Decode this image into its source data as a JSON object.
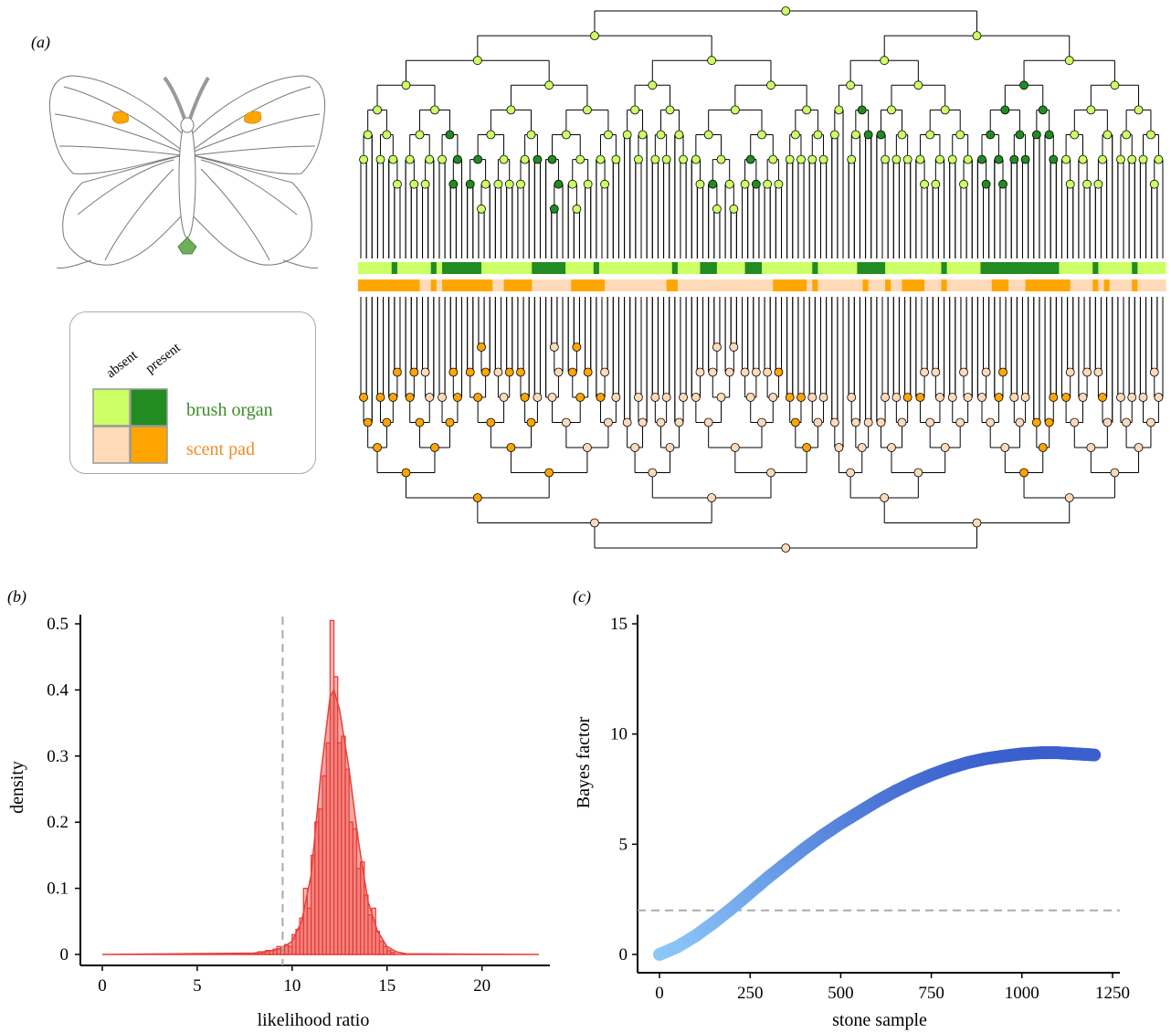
{
  "panel_a": {
    "label": "(a)",
    "legend": {
      "absent_label": "absent",
      "present_label": "present",
      "rows": [
        {
          "label": "brush organ",
          "absent_color": "#ccff66",
          "present_color": "#228b22",
          "label_color": "#3c8c28"
        },
        {
          "label": "scent pad",
          "absent_color": "#ffdab9",
          "present_color": "#ffa500",
          "label_color": "#f08c28"
        }
      ]
    },
    "tree_colors": {
      "brush_absent": "#ccff66",
      "brush_present": "#228b22",
      "scent_absent": "#ffdab9",
      "scent_present": "#ffa500"
    }
  },
  "panel_b": {
    "label": "(b)",
    "chart_data": {
      "type": "bar",
      "xlabel": "likelihood ratio",
      "ylabel": "density",
      "xlim": [
        0,
        23
      ],
      "ylim": [
        0,
        0.5
      ],
      "xticks": [
        "0",
        "5",
        "10",
        "15",
        "20"
      ],
      "yticks": [
        "0",
        "0.1",
        "0.2",
        "0.3",
        "0.4",
        "0.5"
      ],
      "reference_line_x": 9.5,
      "color": "#e8403a",
      "bin_width": 0.2,
      "bins_x": [
        8.0,
        8.2,
        8.4,
        8.6,
        8.8,
        9.0,
        9.2,
        9.4,
        9.6,
        9.8,
        10.0,
        10.2,
        10.4,
        10.6,
        10.8,
        11.0,
        11.2,
        11.4,
        11.6,
        11.8,
        12.0,
        12.2,
        12.4,
        12.6,
        12.8,
        13.0,
        13.2,
        13.4,
        13.6,
        13.8,
        14.0,
        14.2,
        14.4,
        14.6,
        14.8,
        15.0,
        15.2
      ],
      "bins_density": [
        0.002,
        0.004,
        0.003,
        0.006,
        0.006,
        0.008,
        0.012,
        0.006,
        0.015,
        0.012,
        0.03,
        0.038,
        0.055,
        0.1,
        0.07,
        0.15,
        0.2,
        0.22,
        0.27,
        0.32,
        0.505,
        0.42,
        0.32,
        0.33,
        0.28,
        0.2,
        0.19,
        0.13,
        0.14,
        0.09,
        0.06,
        0.07,
        0.035,
        0.02,
        0.012,
        0.006,
        0.003
      ],
      "density_curve": {
        "x": [
          0.0,
          8.0,
          9.0,
          9.5,
          10.0,
          10.5,
          11.0,
          11.5,
          12.0,
          12.2,
          12.5,
          13.0,
          13.5,
          14.0,
          14.5,
          15.0,
          15.5,
          16.0,
          23.0
        ],
        "y": [
          0.0,
          0.002,
          0.006,
          0.01,
          0.02,
          0.05,
          0.12,
          0.27,
          0.39,
          0.4,
          0.37,
          0.28,
          0.17,
          0.08,
          0.035,
          0.012,
          0.004,
          0.001,
          0.0
        ]
      }
    }
  },
  "panel_c": {
    "label": "(c)",
    "chart_data": {
      "type": "scatter",
      "xlabel": "stone sample",
      "ylabel": "Bayes factor",
      "xlim": [
        0,
        1250
      ],
      "ylim": [
        0,
        15
      ],
      "xticks": [
        "0",
        "250",
        "500",
        "750",
        "1000",
        "1250"
      ],
      "yticks": [
        "0",
        "5",
        "10",
        "15"
      ],
      "reference_line_y": 2,
      "color_start": "#8cc8f8",
      "color_end": "#3a5fcd",
      "x": [
        0,
        50,
        100,
        150,
        200,
        250,
        300,
        350,
        400,
        450,
        500,
        550,
        600,
        650,
        700,
        750,
        800,
        850,
        900,
        950,
        1000,
        1050,
        1100,
        1150,
        1200
      ],
      "y": [
        0.0,
        0.35,
        0.85,
        1.45,
        2.1,
        2.8,
        3.5,
        4.15,
        4.8,
        5.4,
        5.95,
        6.45,
        6.95,
        7.4,
        7.8,
        8.15,
        8.45,
        8.7,
        8.88,
        9.0,
        9.1,
        9.15,
        9.15,
        9.1,
        9.05
      ]
    }
  }
}
